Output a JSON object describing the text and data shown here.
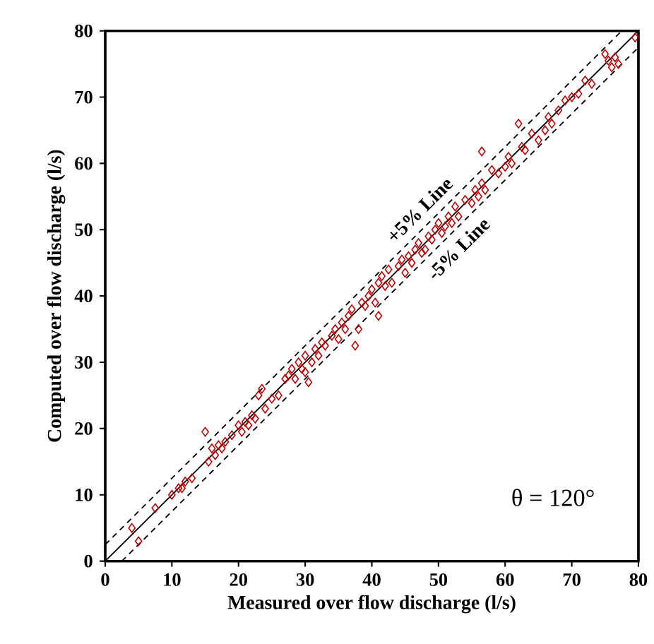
{
  "chart_data": {
    "type": "scatter",
    "xlabel": "Measured over flow discharge (l/s)",
    "ylabel": "Computed over flow discharge (l/s)",
    "xlim": [
      0,
      80
    ],
    "ylim": [
      0,
      80
    ],
    "xticks": [
      0,
      10,
      20,
      30,
      40,
      50,
      60,
      70,
      80
    ],
    "yticks": [
      0,
      10,
      20,
      30,
      40,
      50,
      60,
      70,
      80
    ],
    "grid": false,
    "annotations": [
      "θ = 120°"
    ],
    "series": [
      {
        "color": "#c00000",
        "marker": "diamond",
        "x": [
          4,
          5,
          7.5,
          10,
          11,
          11.5,
          12,
          13,
          15,
          15.5,
          16,
          16.5,
          17,
          17.5,
          18,
          19,
          20,
          20.5,
          21,
          21.5,
          22,
          22.5,
          23,
          23.5,
          24,
          25,
          26,
          27,
          27.5,
          28,
          28.5,
          29,
          29.5,
          30,
          30,
          30.5,
          31,
          31.5,
          32,
          32.5,
          33,
          34,
          34.5,
          35,
          35.5,
          36,
          36.5,
          37,
          37.5,
          38,
          38.5,
          39,
          39.5,
          40,
          40.5,
          41,
          41,
          41.5,
          42,
          42.5,
          43,
          44,
          44.5,
          45,
          45.5,
          46,
          46.5,
          47,
          47.5,
          48,
          48.5,
          49,
          49.5,
          50,
          50.5,
          51,
          51.5,
          52,
          52.5,
          53,
          54,
          55,
          55.5,
          56,
          56.5,
          56.5,
          57,
          58,
          59,
          60,
          60.5,
          61,
          62,
          62.5,
          63,
          64,
          65,
          66,
          66.5,
          67,
          68,
          69,
          70,
          71,
          72,
          73,
          75,
          75.5,
          76,
          76.5,
          77,
          79.5
        ],
        "values": [
          5,
          3,
          8,
          10,
          11,
          11,
          12,
          12.5,
          19.5,
          15,
          17,
          16,
          17.5,
          17,
          18,
          19,
          20.5,
          19.5,
          21,
          20.5,
          22,
          21.5,
          25,
          26,
          23,
          24.5,
          25,
          27.5,
          28,
          29,
          27.5,
          30,
          29,
          31,
          28.5,
          27,
          30,
          32,
          31,
          33,
          32.5,
          34,
          35,
          33.5,
          36,
          35,
          37,
          38,
          32.5,
          35,
          39,
          38.5,
          40,
          41,
          39,
          37,
          42,
          43,
          41.5,
          44,
          42,
          44.5,
          45.5,
          43.5,
          46,
          45,
          47,
          48,
          46.5,
          47,
          49,
          48.5,
          50,
          51,
          49.5,
          50.5,
          52,
          51,
          53.5,
          52,
          54.5,
          54,
          56,
          55,
          57,
          61.8,
          56,
          59,
          58.5,
          59.5,
          61,
          60,
          66,
          62.5,
          62,
          64.5,
          63.5,
          65,
          67,
          66,
          68,
          69.5,
          70,
          70.5,
          72.5,
          72,
          76.5,
          75.5,
          74.5,
          76,
          75,
          79
        ]
      },
      {
        "type": "line",
        "color": "#000000",
        "marker": "none",
        "line_style": "solid",
        "x": [
          0,
          80
        ],
        "values": [
          0,
          80
        ]
      },
      {
        "type": "line",
        "name": "+5% Line",
        "color": "#000000",
        "marker": "none",
        "line_style": "dashed",
        "x": [
          0,
          77.5
        ],
        "values": [
          2.5,
          80
        ]
      },
      {
        "type": "line",
        "name": "-5% Line",
        "color": "#000000",
        "marker": "none",
        "line_style": "dashed",
        "x": [
          2.5,
          80
        ],
        "values": [
          0,
          77.5
        ]
      }
    ]
  }
}
